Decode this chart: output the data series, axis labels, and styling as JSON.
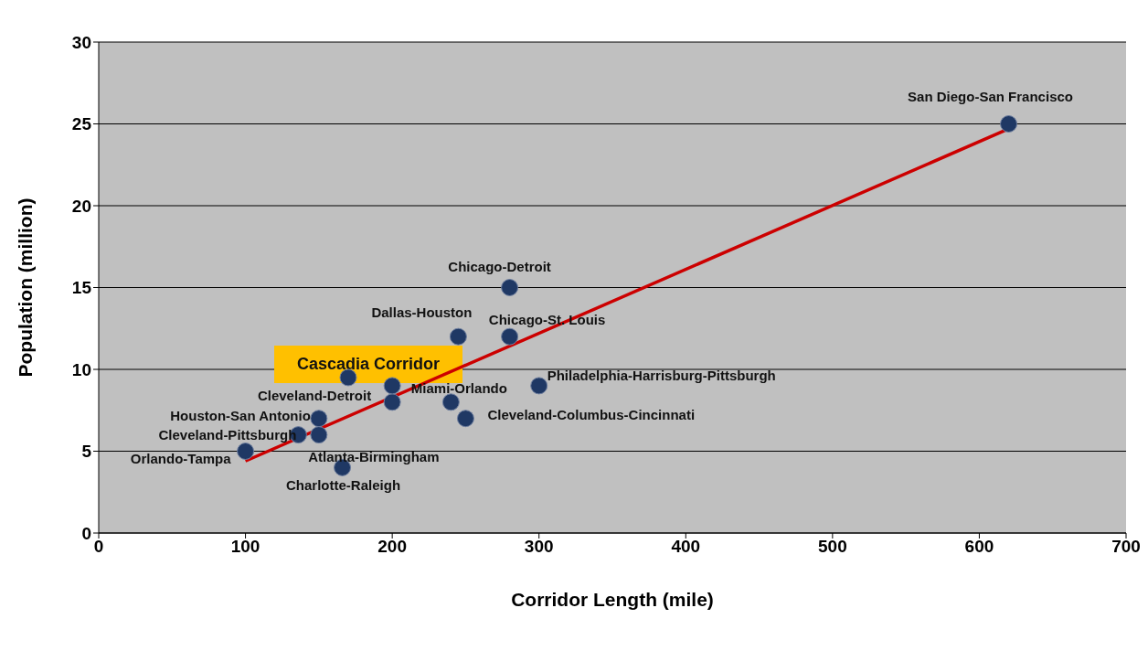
{
  "chart_data": {
    "type": "scatter",
    "xlabel": "Corridor Length (mile)",
    "ylabel": "Population (million)",
    "xlim": [
      0,
      700
    ],
    "xticks": [
      0,
      100,
      200,
      300,
      400,
      500,
      600,
      700
    ],
    "ylim": [
      0,
      30
    ],
    "yticks": [
      0,
      5,
      10,
      15,
      20,
      25,
      30
    ],
    "grid": "y",
    "marker": "circle",
    "series": [
      {
        "color": "#1f3864",
        "x": [
          620,
          280,
          245,
          280,
          300,
          240,
          250,
          200,
          150,
          136,
          150,
          100,
          166,
          170,
          200
        ],
        "values": [
          25,
          15,
          12,
          12,
          9,
          8,
          7,
          8,
          7,
          6,
          6,
          5,
          4,
          9.5,
          9
        ]
      },
      {
        "type": "line",
        "marker": "none",
        "color": "#cc0000",
        "x": [
          100,
          620
        ],
        "values": [
          4.4,
          24.7
        ]
      }
    ],
    "annotations": [
      {
        "text": "San Diego-San  Francisco",
        "x": 620,
        "y": 25
      },
      {
        "text": "Chicago-Detroit",
        "x": 280,
        "y": 15
      },
      {
        "text": "Dallas-Houston",
        "x": 245,
        "y": 12
      },
      {
        "text": "Chicago-St. Louis",
        "x": 280,
        "y": 12
      },
      {
        "text": "Philadelphia-Harrisburg-Pittsburgh",
        "x": 300,
        "y": 9
      },
      {
        "text": "Miami-Orlando",
        "x": 240,
        "y": 8
      },
      {
        "text": "Cleveland-Columbus-Cincinnati",
        "x": 250,
        "y": 7
      },
      {
        "text": "Cleveland-Detroit",
        "x": 200,
        "y": 8
      },
      {
        "text": "Houston-San Antonio",
        "x": 150,
        "y": 7
      },
      {
        "text": "Cleveland-Pittsburgh",
        "x": 136,
        "y": 6
      },
      {
        "text": "Atlanta-Birmingham",
        "x": 150,
        "y": 6
      },
      {
        "text": "Orlando-Tampa",
        "x": 100,
        "y": 5
      },
      {
        "text": "Charlotte-Raleigh",
        "x": 166,
        "y": 4
      },
      "Cascadia Corridor"
    ]
  }
}
